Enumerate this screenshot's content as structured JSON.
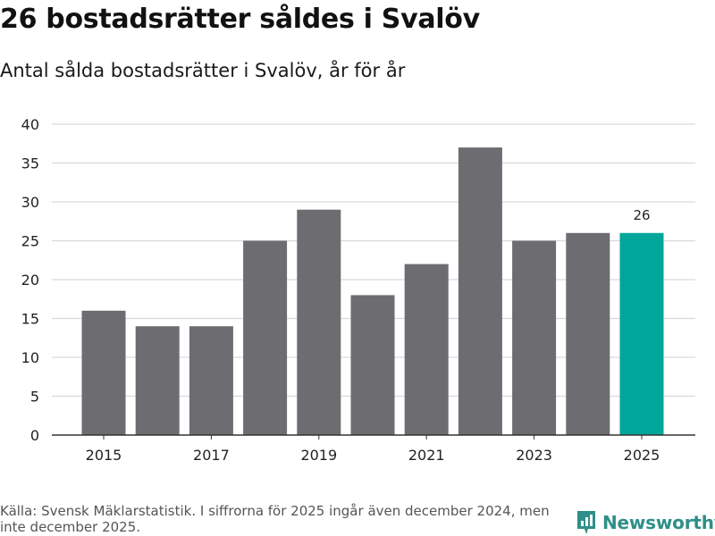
{
  "title": "26 bostadsrätter såldes i Svalöv",
  "subtitle": "Antal sålda bostadsrätter i Svalöv, år för år",
  "source": "Källa: Svensk Mäklarstatistik. I siffrorna för 2025 ingår även december 2024, men inte december 2025.",
  "brand": "Newsworthy",
  "colors": {
    "bar": "#6d6c71",
    "highlight": "#00a699",
    "grid": "#d9d9d9",
    "axis": "#333333",
    "brand": "#2e8f88"
  },
  "chart_data": {
    "type": "bar",
    "categories": [
      "2015",
      "2016",
      "2017",
      "2018",
      "2019",
      "2020",
      "2021",
      "2022",
      "2023",
      "2024",
      "2025"
    ],
    "values": [
      16,
      14,
      14,
      25,
      29,
      18,
      22,
      37,
      25,
      26,
      26
    ],
    "x_tick_labels": [
      "2015",
      "2017",
      "2019",
      "2021",
      "2023",
      "2025"
    ],
    "y_ticks": [
      0,
      5,
      10,
      15,
      20,
      25,
      30,
      35,
      40
    ],
    "ylim": [
      0,
      40
    ],
    "highlight_index": 10,
    "data_labels": [
      {
        "index": 10,
        "text": "26"
      }
    ],
    "title": "26 bostadsrätter såldes i Svalöv",
    "xlabel": "",
    "ylabel": "",
    "grid": true
  }
}
